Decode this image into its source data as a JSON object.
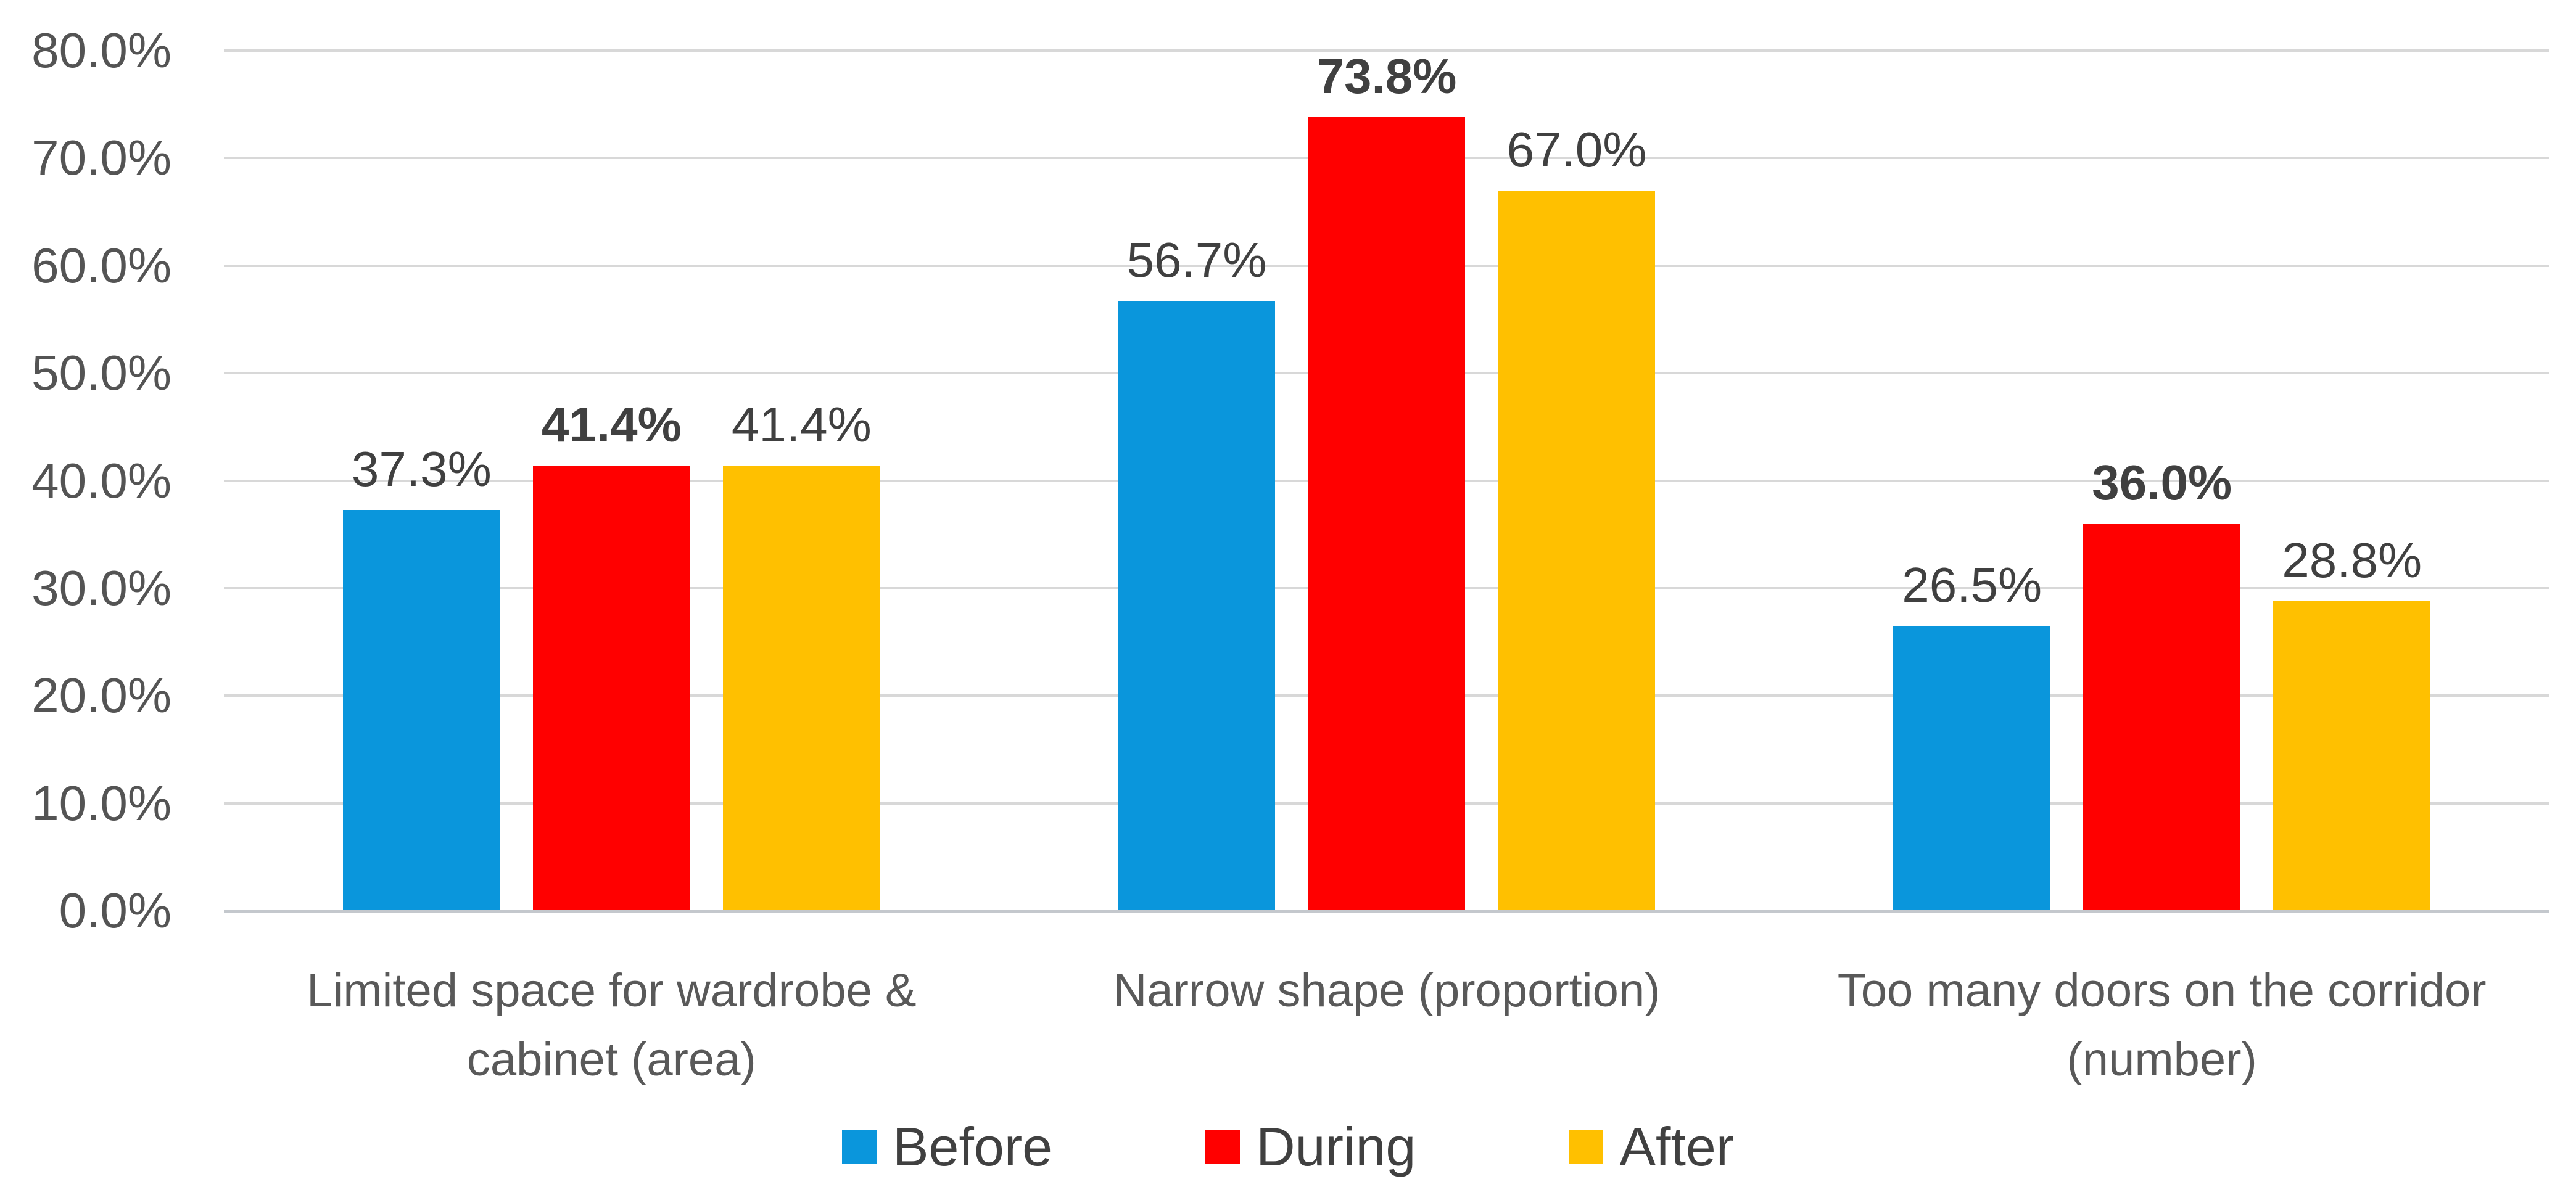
{
  "chart_data": {
    "type": "bar",
    "title": "",
    "xlabel": "",
    "ylabel": "",
    "categories": [
      "Limited space for wardrobe & cabinet (area)",
      "Narrow shape (proportion)",
      "Too many doors on the corridor (number)"
    ],
    "series": [
      {
        "name": "Before",
        "color": "#0a96dc",
        "values": [
          37.3,
          56.7,
          26.5
        ],
        "data_labels": [
          "37.3%",
          "56.7%",
          "26.5%"
        ],
        "bold_labels": false
      },
      {
        "name": "During",
        "color": "#ff0000",
        "values": [
          41.4,
          73.8,
          36.0
        ],
        "data_labels": [
          "41.4%",
          "73.8%",
          "36.0%"
        ],
        "bold_labels": true
      },
      {
        "name": "After",
        "color": "#ffc000",
        "values": [
          41.4,
          67.0,
          28.8
        ],
        "data_labels": [
          "41.4%",
          "67.0%",
          "28.8%"
        ],
        "bold_labels": false
      }
    ],
    "ylim": [
      0,
      80
    ],
    "ytick_values": [
      0,
      10,
      20,
      30,
      40,
      50,
      60,
      70,
      80
    ],
    "ytick_labels": [
      "0.0%",
      "10.0%",
      "20.0%",
      "30.0%",
      "40.0%",
      "50.0%",
      "60.0%",
      "70.0%",
      "80.0%"
    ],
    "grid": true,
    "legend_position": "bottom"
  },
  "colors": {
    "background": "#ffffff",
    "gridline": "#d8d8d8",
    "baseline": "#c4c8cd",
    "axis_text": "#545454",
    "category_text": "#595959",
    "data_label_text": "#404040",
    "legend_text": "#404040"
  }
}
